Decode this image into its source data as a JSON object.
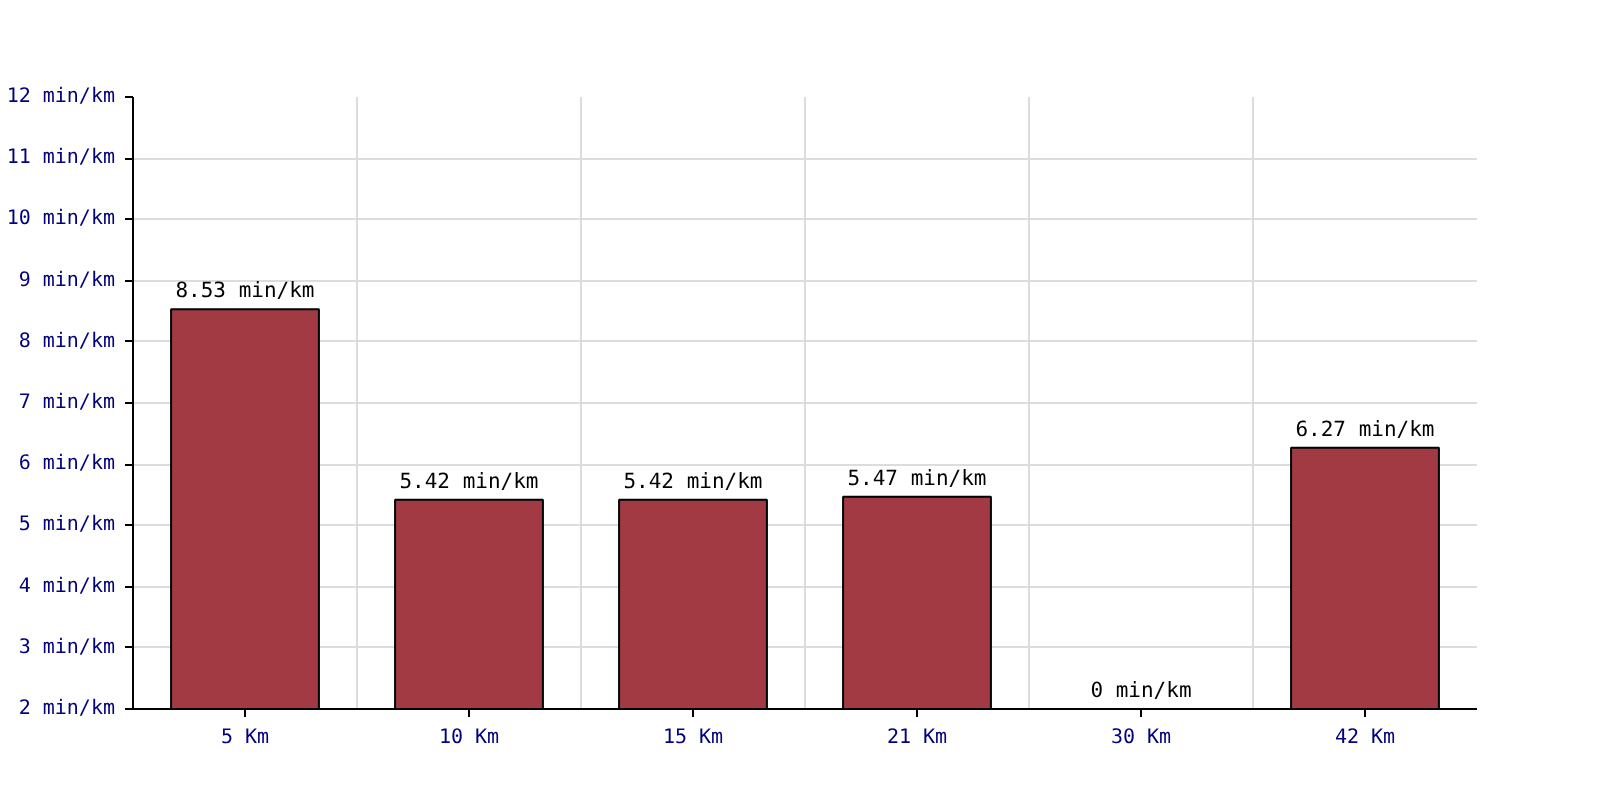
{
  "chart_data": {
    "type": "bar",
    "categories": [
      "5 Km",
      "10 Km",
      "15 Km",
      "21 Km",
      "30 Km",
      "42 Km"
    ],
    "values": [
      8.53,
      5.42,
      5.42,
      5.47,
      null,
      6.27
    ],
    "value_labels": [
      "8.53 min/km",
      "5.42 min/km",
      "5.42 min/km",
      "5.47 min/km",
      "0 min/km",
      "6.27 min/km"
    ],
    "color": "#a23a44",
    "ylim": [
      2,
      12
    ],
    "yticks": [
      {
        "value": 2,
        "label": "2 min/km"
      },
      {
        "value": 3,
        "label": "3 min/km"
      },
      {
        "value": 4,
        "label": "4 min/km"
      },
      {
        "value": 5,
        "label": "5 min/km"
      },
      {
        "value": 6,
        "label": "6 min/km"
      },
      {
        "value": 7,
        "label": "7 min/km"
      },
      {
        "value": 8,
        "label": "8 min/km"
      },
      {
        "value": 9,
        "label": "9 min/km"
      },
      {
        "value": 10,
        "label": "10 min/km"
      },
      {
        "value": 11,
        "label": "11 min/km"
      },
      {
        "value": 12,
        "label": "12 min/km"
      }
    ],
    "grid": true
  }
}
